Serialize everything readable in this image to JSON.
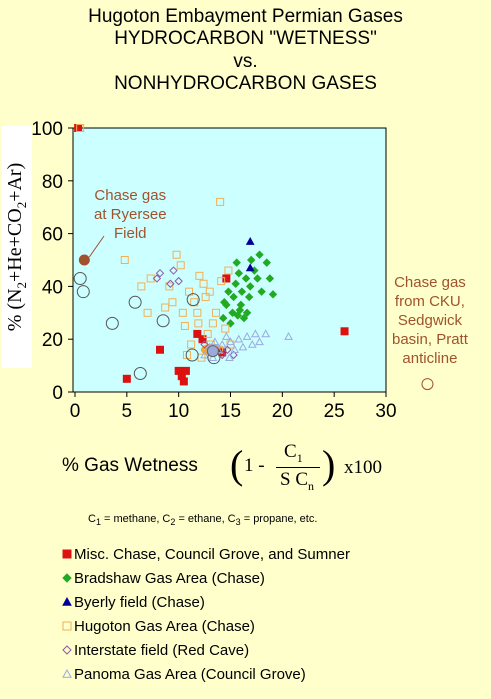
{
  "title": {
    "line1": "Hugoton Embayment Permian Gases",
    "line2": "HYDROCARBON \"WETNESS\"",
    "line3": "vs.",
    "line4": "NONHYDROCARBON GASES"
  },
  "annotations": {
    "ryersee": [
      "Chase gas",
      "at Ryersee",
      "Field"
    ],
    "cku": [
      "Chase gas",
      "from CKU,",
      "Sedgwick",
      "basin, Pratt",
      "anticline"
    ]
  },
  "axis": {
    "ylabel_parts": [
      "% (N",
      "2",
      "+He+CO",
      "2",
      "+Ar)"
    ],
    "xlabel": "% Gas Wetness",
    "formula": {
      "one_minus": "1 -",
      "num": "C",
      "num_sub": "1",
      "den": "S C",
      "den_sub": "n",
      "times": "x100"
    },
    "note": {
      "c1": "C",
      "c1_sub": "1",
      "t1": " = methane, C",
      "c2_sub": "2",
      "t2": " = ethane, C",
      "c3_sub": "3",
      "t3": " = propane, etc."
    }
  },
  "colors": {
    "plot_bg": "#ccffff",
    "page_bg": "#ffffcc",
    "misc": "#dd1111",
    "bradshaw": "#22aa22",
    "byerly": "#000099",
    "hugoton": "#f2b056",
    "interstate": "#8a5aa6",
    "panoma": "#99aadd",
    "chase_brown": "#a0522d",
    "highlight": "#ff9900"
  },
  "chart_data": {
    "type": "scatter",
    "xlabel": "% Gas Wetness",
    "ylabel": "% (N2+He+CO2+Ar)",
    "xlim": [
      0,
      30
    ],
    "ylim": [
      0,
      100
    ],
    "xticks": [
      0,
      5,
      10,
      15,
      20,
      25,
      30
    ],
    "yticks": [
      0,
      20,
      40,
      60,
      80,
      100
    ],
    "legend_position": "bottom",
    "series": [
      {
        "name": "Misc. Chase, Council Grove, and Sumner",
        "marker": "square-filled",
        "color": "#dd1111",
        "points": [
          [
            0.3,
            100
          ],
          [
            5,
            5
          ],
          [
            8.2,
            16
          ],
          [
            10,
            8
          ],
          [
            10.3,
            6
          ],
          [
            10.5,
            4
          ],
          [
            10.7,
            8
          ],
          [
            11.8,
            22
          ],
          [
            12.3,
            20
          ],
          [
            14.2,
            15
          ],
          [
            14.6,
            43
          ],
          [
            26,
            23
          ]
        ]
      },
      {
        "name": "Bradshaw Gas Area (Chase)",
        "marker": "diamond-filled",
        "color": "#22aa22",
        "points": [
          [
            14.3,
            28
          ],
          [
            14.6,
            33
          ],
          [
            14.8,
            38
          ],
          [
            15,
            26
          ],
          [
            15.2,
            30
          ],
          [
            15.3,
            36
          ],
          [
            15.5,
            41
          ],
          [
            15.7,
            29
          ],
          [
            15.8,
            45
          ],
          [
            16,
            33
          ],
          [
            16.1,
            38
          ],
          [
            16.3,
            28
          ],
          [
            16.5,
            43
          ],
          [
            16.6,
            30
          ],
          [
            16.8,
            36
          ],
          [
            16.9,
            40
          ],
          [
            17,
            50
          ],
          [
            17.3,
            46
          ],
          [
            17.6,
            43
          ],
          [
            17.8,
            52
          ],
          [
            18,
            38
          ],
          [
            18.5,
            49
          ],
          [
            18.8,
            43
          ],
          [
            19.1,
            37
          ],
          [
            15.6,
            49
          ],
          [
            14.4,
            34
          ],
          [
            15.9,
            31
          ]
        ]
      },
      {
        "name": "Byerly field (Chase)",
        "marker": "triangle-filled",
        "color": "#000099",
        "points": [
          [
            16.9,
            57
          ],
          [
            16.9,
            47
          ]
        ]
      },
      {
        "name": "Hugoton Gas Area (Chase)",
        "marker": "square-open",
        "color": "#f2b056",
        "points": [
          [
            0.5,
            100
          ],
          [
            4.8,
            50
          ],
          [
            6.4,
            40
          ],
          [
            7,
            30
          ],
          [
            7.3,
            43
          ],
          [
            8.7,
            32
          ],
          [
            9.1,
            40
          ],
          [
            9.4,
            34
          ],
          [
            9.8,
            52
          ],
          [
            10.2,
            48
          ],
          [
            10.6,
            25
          ],
          [
            11,
            38
          ],
          [
            11.5,
            34
          ],
          [
            11.8,
            30
          ],
          [
            12,
            44
          ],
          [
            12.4,
            41
          ],
          [
            12.6,
            36
          ],
          [
            13,
            38
          ],
          [
            13.3,
            26
          ],
          [
            13.6,
            30
          ],
          [
            14,
            72
          ],
          [
            14.1,
            42
          ],
          [
            14.5,
            24
          ],
          [
            14.8,
            46
          ],
          [
            12.8,
            22
          ],
          [
            11.2,
            18
          ],
          [
            10.8,
            14
          ],
          [
            13.1,
            18
          ],
          [
            12.2,
            13
          ],
          [
            13.9,
            16
          ],
          [
            15,
            18
          ],
          [
            11.9,
            26
          ],
          [
            10.4,
            30
          ]
        ]
      },
      {
        "name": "Interstate field (Red Cave)",
        "marker": "diamond-open",
        "color": "#8a5aa6",
        "points": [
          [
            7.9,
            43
          ],
          [
            8.2,
            45
          ],
          [
            9.5,
            46
          ],
          [
            9.2,
            41
          ],
          [
            10,
            42
          ],
          [
            14.2,
            14
          ],
          [
            14.7,
            16
          ],
          [
            15.3,
            14
          ],
          [
            12.5,
            18
          ]
        ]
      },
      {
        "name": "Panoma Gas Area (Council Grove)",
        "marker": "triangle-open",
        "color": "#99aadd",
        "points": [
          [
            12.5,
            14
          ],
          [
            13,
            17
          ],
          [
            13.5,
            19
          ],
          [
            13.8,
            16
          ],
          [
            14.2,
            18
          ],
          [
            14.6,
            21
          ],
          [
            15,
            19
          ],
          [
            15.4,
            16
          ],
          [
            15.8,
            20
          ],
          [
            16.2,
            17
          ],
          [
            16.6,
            21
          ],
          [
            17.1,
            18
          ],
          [
            17.4,
            22
          ],
          [
            17.8,
            19
          ],
          [
            18.4,
            22
          ],
          [
            20.6,
            21
          ],
          [
            13.3,
            13
          ],
          [
            14.9,
            13
          ]
        ]
      },
      {
        "marker": "circle-open-large",
        "color": "#555555",
        "points": [
          [
            0.5,
            43
          ],
          [
            0.8,
            38
          ],
          [
            3.6,
            26
          ],
          [
            5.8,
            34
          ],
          [
            6.3,
            7
          ],
          [
            8.5,
            27
          ],
          [
            11.4,
            35
          ],
          [
            13.4,
            13
          ],
          [
            11.3,
            14
          ]
        ]
      }
    ],
    "special_points": {
      "ryersee": {
        "x": 0.9,
        "y": 50
      },
      "cku": {
        "x": 34,
        "y": 3
      }
    }
  },
  "legend": [
    {
      "label": "Misc. Chase, Council Grove, and Sumner",
      "marker": "square-filled",
      "color": "#dd1111"
    },
    {
      "label": "Bradshaw Gas Area (Chase)",
      "marker": "diamond-filled",
      "color": "#22aa22"
    },
    {
      "label": "Byerly field (Chase)",
      "marker": "triangle-filled",
      "color": "#000099"
    },
    {
      "label": "Hugoton Gas Area (Chase)",
      "marker": "square-open",
      "color": "#f2b056"
    },
    {
      "label": "Interstate field (Red Cave)",
      "marker": "diamond-open",
      "color": "#8a5aa6"
    },
    {
      "label": "Panoma Gas Area (Council Grove)",
      "marker": "triangle-open",
      "color": "#99aadd"
    }
  ]
}
